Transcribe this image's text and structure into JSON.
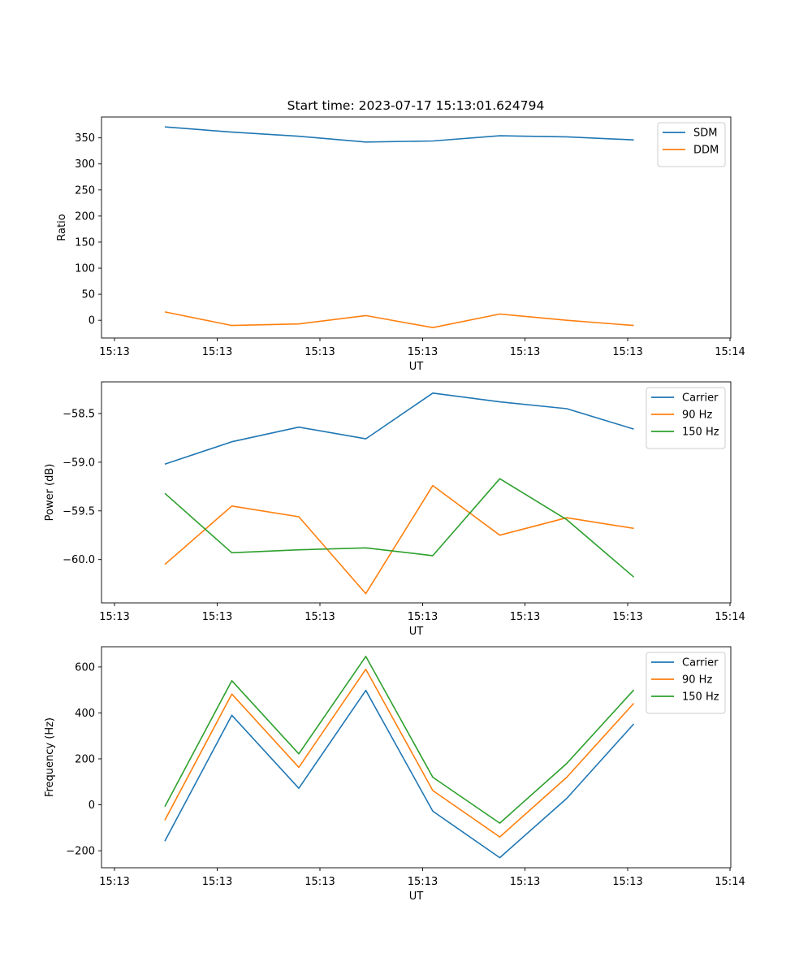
{
  "chart_data": [
    {
      "type": "line",
      "title": "Start time: 2023-07-17 15:13:01.624794",
      "xlabel": "UT",
      "ylabel": "Ratio",
      "x_tick_labels": [
        "15:13",
        "15:13",
        "15:13",
        "15:13",
        "15:13",
        "15:13",
        "15:14"
      ],
      "y_ticks": [
        0,
        50,
        100,
        150,
        200,
        250,
        300,
        350
      ],
      "y_tick_labels": [
        "0",
        "50",
        "100",
        "150",
        "200",
        "250",
        "300",
        "350"
      ],
      "ylim": [
        -34,
        390
      ],
      "legend_position": "top-right",
      "series": [
        {
          "name": "SDM",
          "color": "#1f77b4",
          "values": [
            371,
            361,
            353,
            342,
            344,
            354,
            352,
            346
          ]
        },
        {
          "name": "DDM",
          "color": "#ff7f0e",
          "values": [
            16,
            -10,
            -7,
            9,
            -14,
            12,
            0,
            -10
          ]
        }
      ]
    },
    {
      "type": "line",
      "title": "",
      "xlabel": "UT",
      "ylabel": "Power (dB)",
      "x_tick_labels": [
        "15:13",
        "15:13",
        "15:13",
        "15:13",
        "15:13",
        "15:13",
        "15:14"
      ],
      "y_ticks": [
        -60.0,
        -59.5,
        -59.0,
        -58.5
      ],
      "y_tick_labels": [
        "−60.0",
        "−59.5",
        "−59.0",
        "−58.5"
      ],
      "ylim": [
        -60.445,
        -58.175
      ],
      "legend_position": "top-right",
      "series": [
        {
          "name": "Carrier",
          "color": "#1f77b4",
          "values": [
            -59.02,
            -58.79,
            -58.64,
            -58.76,
            -58.29,
            -58.38,
            -58.45,
            -58.66
          ]
        },
        {
          "name": "90 Hz",
          "color": "#ff7f0e",
          "values": [
            -60.05,
            -59.45,
            -59.56,
            -60.35,
            -59.24,
            -59.75,
            -59.57,
            -59.68
          ]
        },
        {
          "name": "150 Hz",
          "color": "#2ca02c",
          "values": [
            -59.32,
            -59.93,
            -59.9,
            -59.88,
            -59.96,
            -59.17,
            -59.59,
            -60.18
          ]
        }
      ]
    },
    {
      "type": "line",
      "title": "",
      "xlabel": "UT",
      "ylabel": "Frequency (Hz)",
      "x_tick_labels": [
        "15:13",
        "15:13",
        "15:13",
        "15:13",
        "15:13",
        "15:13",
        "15:14"
      ],
      "y_ticks": [
        -200,
        0,
        200,
        400,
        600
      ],
      "y_tick_labels": [
        "−200",
        "0",
        "200",
        "400",
        "600"
      ],
      "ylim": [
        -274,
        688
      ],
      "legend_position": "top-right",
      "series": [
        {
          "name": "Carrier",
          "color": "#1f77b4",
          "values": [
            -158,
            390,
            72,
            498,
            -28,
            -230,
            28,
            352
          ]
        },
        {
          "name": "90 Hz",
          "color": "#ff7f0e",
          "values": [
            -67,
            482,
            163,
            590,
            62,
            -140,
            120,
            442
          ]
        },
        {
          "name": "150 Hz",
          "color": "#2ca02c",
          "values": [
            -8,
            540,
            222,
            646,
            120,
            -80,
            180,
            500
          ]
        }
      ]
    }
  ]
}
